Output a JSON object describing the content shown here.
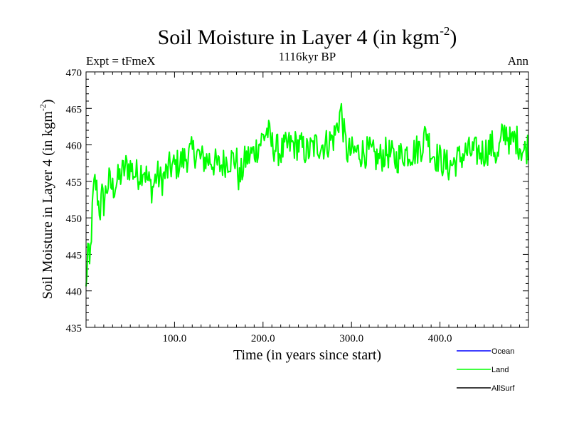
{
  "chart_data": {
    "type": "line",
    "title": "Soil Moisture in Layer 4 (in kgm",
    "title_sup": "-2",
    "title_end": ")",
    "subtitle_left": "Expt = tFmeX",
    "subtitle_center": "1116kyr BP",
    "subtitle_right": "Ann",
    "xlabel": "Time (in years since start)",
    "ylabel": "Soil Moisture in Layer 4 (in kgm",
    "ylabel_sup": "-2",
    "ylabel_end": ")",
    "xlim": [
      0,
      500
    ],
    "ylim": [
      435,
      470
    ],
    "xticks": [
      100,
      200,
      300,
      400
    ],
    "xtick_labels": [
      "100.0",
      "200.0",
      "300.0",
      "400.0"
    ],
    "yticks": [
      435,
      440,
      445,
      450,
      455,
      460,
      465,
      470
    ],
    "ytick_labels": [
      "435",
      "440",
      "445",
      "450",
      "455",
      "460",
      "465",
      "470"
    ],
    "legend": [
      {
        "name": "Ocean",
        "color": "#0000ff"
      },
      {
        "name": "Land",
        "color": "#00ff00"
      },
      {
        "name": "AllSurf",
        "color": "#000000"
      }
    ],
    "series": [
      {
        "name": "Land",
        "color": "#00ff00",
        "anchors_x": [
          0,
          2,
          4,
          6,
          8,
          10,
          12,
          14,
          16,
          18,
          20,
          23,
          26,
          30,
          35,
          40,
          45,
          50,
          55,
          60,
          65,
          70,
          75,
          80,
          85,
          90,
          95,
          100,
          110,
          120,
          125,
          130,
          140,
          150,
          160,
          170,
          173,
          180,
          190,
          200,
          205,
          210,
          220,
          230,
          240,
          250,
          260,
          270,
          280,
          285,
          288,
          292,
          295,
          300,
          310,
          320,
          330,
          340,
          350,
          360,
          370,
          380,
          385,
          390,
          400,
          410,
          420,
          430,
          440,
          450,
          460,
          465,
          470,
          475,
          480,
          485,
          490,
          495,
          500
        ],
        "anchors_y": [
          440,
          446,
          443,
          448,
          453,
          455,
          454,
          452,
          451,
          453,
          452,
          454,
          455,
          454,
          455,
          456,
          457,
          457,
          456,
          456,
          457,
          455,
          454,
          456,
          455,
          456,
          457,
          457,
          458,
          459,
          459,
          458,
          458,
          457,
          458,
          458,
          455,
          458,
          459,
          461,
          462,
          460,
          459,
          460,
          460,
          459,
          460,
          460,
          461,
          463,
          465,
          461,
          459,
          459,
          459,
          459,
          458,
          459,
          458,
          459,
          459,
          460,
          462,
          459,
          458,
          457,
          458,
          459,
          459,
          459,
          460,
          458,
          461,
          462,
          460,
          461,
          460,
          459,
          460
        ],
        "noise_amplitude": 2.2,
        "samples": 500
      }
    ]
  }
}
